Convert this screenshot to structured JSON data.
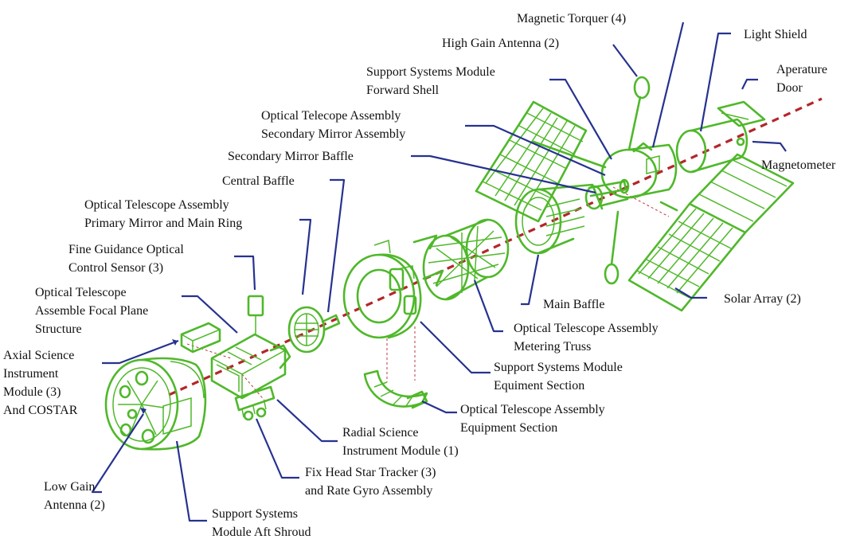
{
  "colors": {
    "hardware": "#4fb82a",
    "leader": "#26328f",
    "axis": "#b3262b",
    "text": "#111111"
  },
  "labels": {
    "magnetic_torquer": [
      "Magnetic Torquer (4)"
    ],
    "high_gain_antenna": [
      "High Gain Antenna (2)"
    ],
    "light_shield": [
      "Light Shield"
    ],
    "aperture_door": [
      "Aperature",
      "Door"
    ],
    "ssm_forward_shell": [
      "Support Systems Module",
      "Forward Shell"
    ],
    "ota_secondary_mirror": [
      "Optical Telecope Assembly",
      "Secondary Mirror Assembly"
    ],
    "secondary_mirror_baffle": [
      "Secondary Mirror Baffle"
    ],
    "magnetometer": [
      "Magnetometer"
    ],
    "central_baffle": [
      "Central Baffle"
    ],
    "ota_primary_mirror": [
      "Optical Telescope Assembly",
      "Primary Mirror and Main Ring"
    ],
    "fgs": [
      "Fine Guidance Optical",
      "Control Sensor (3)"
    ],
    "focal_plane": [
      "Optical Telescope",
      "Assemble Focal Plane",
      "Structure"
    ],
    "axial_si": [
      "Axial Science",
      "Instrument",
      "Module (3)",
      "And COSTAR"
    ],
    "main_baffle": [
      "Main Baffle"
    ],
    "solar_array": [
      "Solar Array (2)"
    ],
    "metering_truss": [
      "Optical Telescope Assembly",
      "Metering Truss"
    ],
    "ssm_equipment": [
      "Support Systems Module",
      "Equiment Section"
    ],
    "ota_equipment": [
      "Optical Telescope Assembly",
      "Equipment Section"
    ],
    "radial_si": [
      "Radial Science",
      "Instrument Module (1)"
    ],
    "fhst": [
      "Fix Head Star Tracker (3)",
      "and Rate Gyro Assembly"
    ],
    "low_gain_antenna": [
      "Low Gain",
      "Antenna (2)"
    ],
    "ssm_aft_shroud": [
      "Support Systems",
      "Module Aft Shroud"
    ]
  }
}
